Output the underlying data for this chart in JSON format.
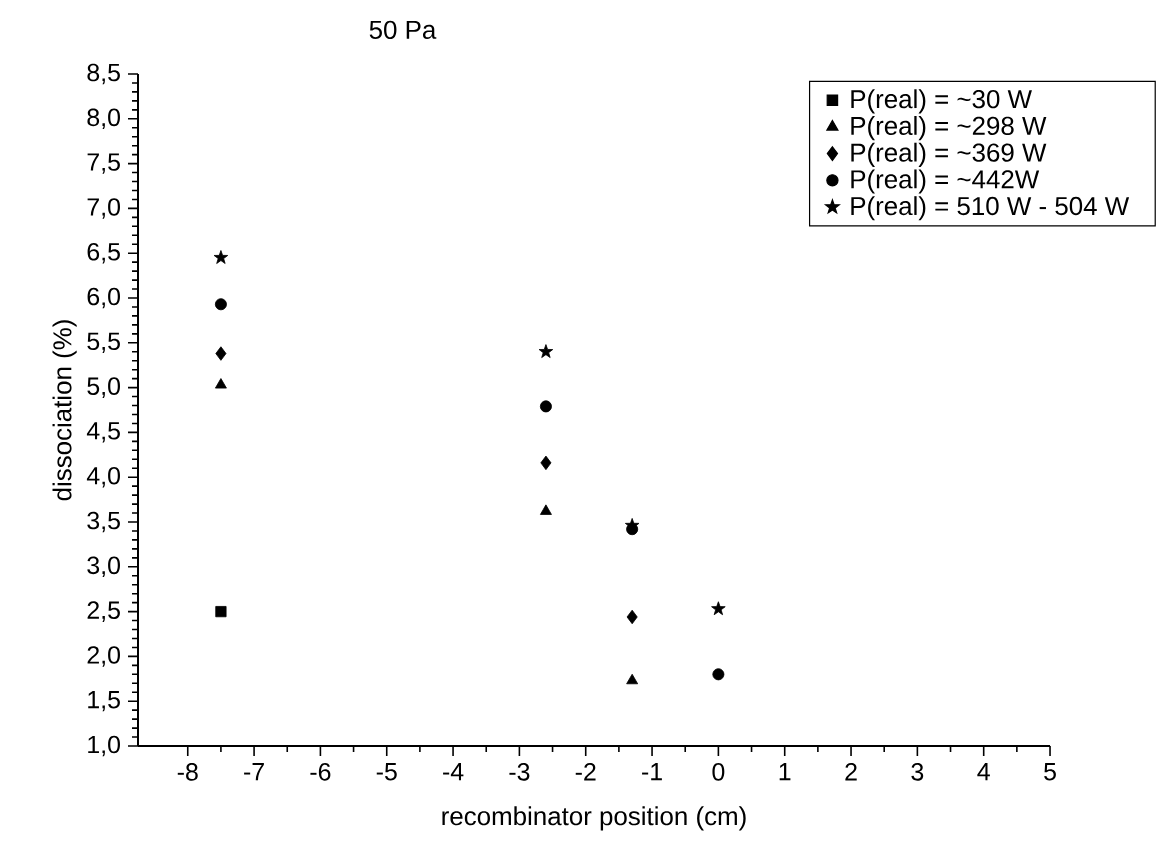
{
  "chart_data": {
    "type": "scatter",
    "title": "50 Pa",
    "xlabel": "recombinator position (cm)",
    "ylabel": "dissociation (%)",
    "xlim": [
      -8.75,
      5
    ],
    "xticks": [
      -8,
      -7,
      -6,
      -5,
      -4,
      -3,
      -2,
      -1,
      0,
      1,
      2,
      3,
      4,
      5
    ],
    "ylim": [
      1.0,
      8.5
    ],
    "yticks": [
      {
        "value": 1.0,
        "label": "1,0"
      },
      {
        "value": 1.5,
        "label": "1,5"
      },
      {
        "value": 2.0,
        "label": "2,0"
      },
      {
        "value": 2.5,
        "label": "2,5"
      },
      {
        "value": 3.0,
        "label": "3,0"
      },
      {
        "value": 3.5,
        "label": "3,5"
      },
      {
        "value": 4.0,
        "label": "4,0"
      },
      {
        "value": 4.5,
        "label": "4,5"
      },
      {
        "value": 5.0,
        "label": "5,0"
      },
      {
        "value": 5.5,
        "label": "5,5"
      },
      {
        "value": 6.0,
        "label": "6,0"
      },
      {
        "value": 6.5,
        "label": "6,5"
      },
      {
        "value": 7.0,
        "label": "7,0"
      },
      {
        "value": 7.5,
        "label": "7,5"
      },
      {
        "value": 8.0,
        "label": "8,0"
      },
      {
        "value": 8.5,
        "label": "8,5"
      }
    ],
    "legend": "top right",
    "grid": false,
    "series": [
      {
        "name": "P(real) = ~30 W",
        "color": "#000000",
        "marker": "square",
        "x": [
          -7.5
        ],
        "values": [
          2.5
        ]
      },
      {
        "name": "P(real) = ~298 W",
        "color": "#000000",
        "marker": "triangle",
        "x": [
          -7.5,
          -2.6,
          -1.3
        ],
        "values": [
          5.03,
          3.62,
          1.73
        ]
      },
      {
        "name": "P(real) = ~369 W",
        "color": "#000000",
        "marker": "diamond",
        "x": [
          -7.5,
          -2.6,
          -1.3
        ],
        "values": [
          5.38,
          4.16,
          2.44
        ]
      },
      {
        "name": "P(real) = ~442W",
        "color": "#000000",
        "marker": "circle",
        "x": [
          -7.5,
          -2.6,
          -1.3,
          0
        ],
        "values": [
          5.93,
          4.79,
          3.42,
          1.8
        ]
      },
      {
        "name": "P(real) = 510 W - 504 W",
        "color": "#000000",
        "marker": "star",
        "x": [
          -7.5,
          -2.6,
          -1.3,
          0
        ],
        "values": [
          6.45,
          5.4,
          3.46,
          2.53
        ]
      }
    ]
  }
}
